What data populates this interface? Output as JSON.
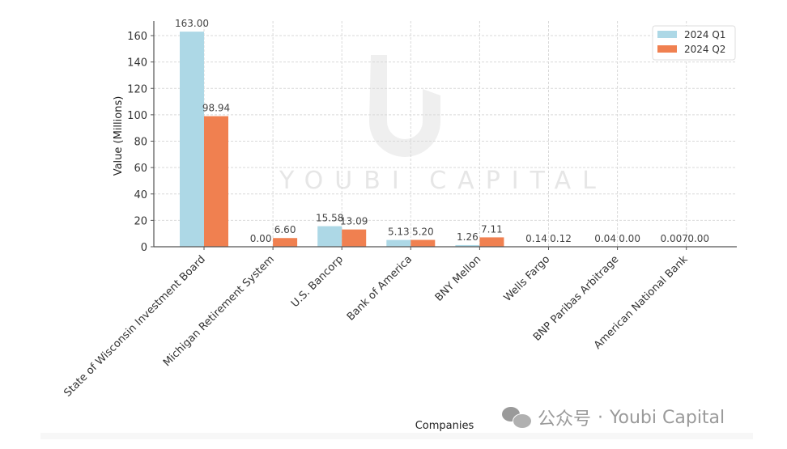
{
  "chart_data": {
    "type": "bar",
    "title": "",
    "xlabel": "Companies",
    "ylabel": "Value (Millions)",
    "ylim": [
      0,
      170
    ],
    "yticks": [
      0,
      20,
      40,
      60,
      80,
      100,
      120,
      140,
      160
    ],
    "grid": true,
    "legend_position": "upper right",
    "categories": [
      "State of Wisconsin Investment Board",
      "Michigan Retirement System",
      "U.S. Bancorp",
      "Bank of America",
      "BNY Mellon",
      "Wells Fargo",
      "BNP Paribas Arbitrage",
      "American National Bank"
    ],
    "series": [
      {
        "name": "2024 Q1",
        "color": "#add8e6",
        "values": [
          163.0,
          0.0,
          15.58,
          5.13,
          1.26,
          0.14,
          0.04,
          0.007
        ],
        "labels": [
          "163.00",
          "0.00",
          "15.58",
          "5.13",
          "1.26",
          "0.14",
          "0.04",
          "0.007"
        ]
      },
      {
        "name": "2024 Q2",
        "color": "#f08050",
        "values": [
          98.94,
          6.6,
          13.09,
          5.2,
          7.11,
          0.12,
          0.0,
          0.0
        ],
        "labels": [
          "98.94",
          "6.60",
          "13.09",
          "5.20",
          "7.11",
          "0.12",
          "0.00",
          "0.00"
        ]
      }
    ]
  },
  "watermark": {
    "logo_text": "YOUBI CAPITAL"
  },
  "footer": {
    "platform": "公众号",
    "separator": "·",
    "account": "Youbi Capital"
  }
}
